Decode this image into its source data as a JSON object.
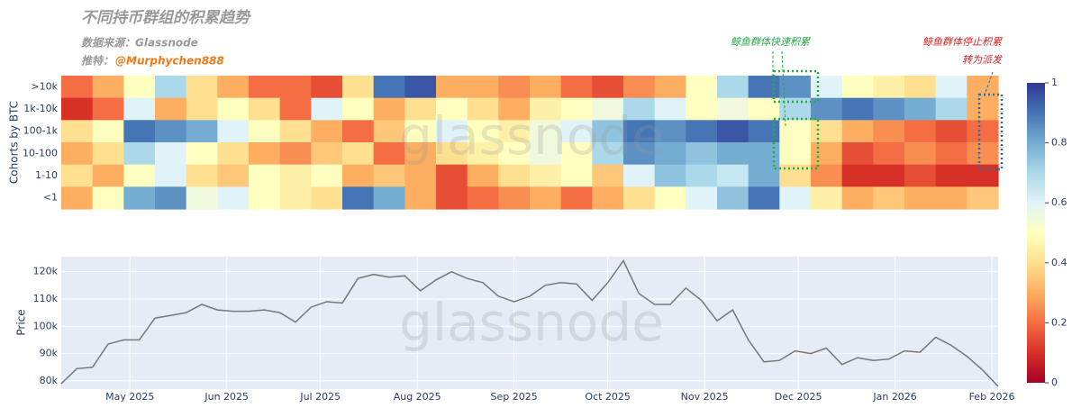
{
  "chart_data": [
    {
      "type": "heatmap",
      "title": "不同持币群组的积累趋势",
      "source": "数据来源：Glassnode",
      "twitter_label": "推特：",
      "twitter_handle": "@Murphychen888",
      "y_label": "Cohorts by BTC",
      "watermark": "glassnode",
      "colorscale": "RdYlBu",
      "zlim": [
        0,
        1
      ],
      "zticks": [
        0,
        0.2,
        0.4,
        0.6,
        0.8,
        1
      ],
      "annotations": [
        "鲸鱼群体快速积累",
        "鲸鱼群体停止积累",
        "转为派发"
      ],
      "series": [
        {
          "name": ">10k",
          "values": [
            0.2,
            0.3,
            0.5,
            0.7,
            0.4,
            0.3,
            0.2,
            0.2,
            0.15,
            0.4,
            0.9,
            0.95,
            0.3,
            0.3,
            0.25,
            0.3,
            0.2,
            0.15,
            0.25,
            0.3,
            0.5,
            0.7,
            0.9,
            0.85,
            0.6,
            0.5,
            0.45,
            0.4,
            0.6,
            0.3
          ]
        },
        {
          "name": "1k-10k",
          "values": [
            0.1,
            0.2,
            0.6,
            0.3,
            0.4,
            0.5,
            0.4,
            0.2,
            0.6,
            0.5,
            0.3,
            0.4,
            0.5,
            0.4,
            0.3,
            0.45,
            0.5,
            0.55,
            0.7,
            0.6,
            0.5,
            0.55,
            0.5,
            0.7,
            0.85,
            0.9,
            0.85,
            0.8,
            0.7,
            0.3
          ]
        },
        {
          "name": "100-1k",
          "values": [
            0.4,
            0.5,
            0.9,
            0.85,
            0.8,
            0.6,
            0.5,
            0.4,
            0.3,
            0.2,
            0.35,
            0.5,
            0.6,
            0.5,
            0.45,
            0.55,
            0.6,
            0.75,
            0.9,
            0.85,
            0.9,
            0.95,
            0.9,
            0.5,
            0.4,
            0.3,
            0.25,
            0.2,
            0.15,
            0.2
          ]
        },
        {
          "name": "10-100",
          "values": [
            0.3,
            0.4,
            0.7,
            0.6,
            0.5,
            0.4,
            0.3,
            0.25,
            0.35,
            0.4,
            0.2,
            0.3,
            0.4,
            0.45,
            0.5,
            0.55,
            0.5,
            0.7,
            0.85,
            0.8,
            0.75,
            0.8,
            0.8,
            0.5,
            0.3,
            0.15,
            0.2,
            0.25,
            0.2,
            0.25
          ]
        },
        {
          "name": "1-10",
          "values": [
            0.4,
            0.3,
            0.5,
            0.6,
            0.4,
            0.35,
            0.5,
            0.45,
            0.5,
            0.3,
            0.35,
            0.3,
            0.15,
            0.3,
            0.4,
            0.45,
            0.5,
            0.35,
            0.6,
            0.75,
            0.7,
            0.65,
            0.8,
            0.4,
            0.25,
            0.1,
            0.1,
            0.15,
            0.1,
            0.1
          ]
        },
        {
          "name": "<1",
          "values": [
            0.3,
            0.5,
            0.8,
            0.85,
            0.55,
            0.6,
            0.5,
            0.45,
            0.4,
            0.9,
            0.8,
            0.3,
            0.15,
            0.2,
            0.25,
            0.3,
            0.2,
            0.3,
            0.4,
            0.5,
            0.6,
            0.75,
            0.9,
            0.6,
            0.45,
            0.3,
            0.35,
            0.3,
            0.3,
            0.35
          ]
        }
      ]
    },
    {
      "type": "line",
      "y_label": "Price",
      "watermark": "glassnode",
      "color": "#777777",
      "grid": true,
      "xlim": [
        0,
        60
      ],
      "xticks": [
        {
          "value": 4.4,
          "label": "May 2025"
        },
        {
          "value": 10.6,
          "label": "Jun 2025"
        },
        {
          "value": 16.6,
          "label": "Jul 2025"
        },
        {
          "value": 22.8,
          "label": "Aug 2025"
        },
        {
          "value": 29,
          "label": "Sep 2025"
        },
        {
          "value": 35,
          "label": "Oct 2025"
        },
        {
          "value": 41.2,
          "label": "Nov 2025"
        },
        {
          "value": 47.2,
          "label": "Dec 2025"
        },
        {
          "value": 53.4,
          "label": "Jan 2026"
        },
        {
          "value": 59.6,
          "label": "Feb 2026"
        }
      ],
      "ylim": [
        77000,
        125500
      ],
      "yticks": [
        {
          "value": 80000,
          "label": "80k"
        },
        {
          "value": 90000,
          "label": "90k"
        },
        {
          "value": 100000,
          "label": "100k"
        },
        {
          "value": 110000,
          "label": "110k"
        },
        {
          "value": 120000,
          "label": "120k"
        }
      ],
      "values": [
        79000,
        84500,
        85000,
        93500,
        95000,
        95000,
        103000,
        104000,
        105000,
        108000,
        106000,
        105500,
        105500,
        106000,
        105000,
        101500,
        107000,
        109000,
        108500,
        117500,
        119000,
        118000,
        118500,
        113000,
        117000,
        120000,
        117500,
        116000,
        111000,
        109000,
        111000,
        115000,
        116000,
        115500,
        109500,
        116000,
        124000,
        112000,
        108000,
        108000,
        114000,
        109500,
        102000,
        106000,
        95000,
        87000,
        87500,
        91000,
        90000,
        92000,
        86000,
        88500,
        87500,
        88000,
        91000,
        90500,
        96000,
        93000,
        89000,
        84000,
        78000
      ]
    }
  ]
}
